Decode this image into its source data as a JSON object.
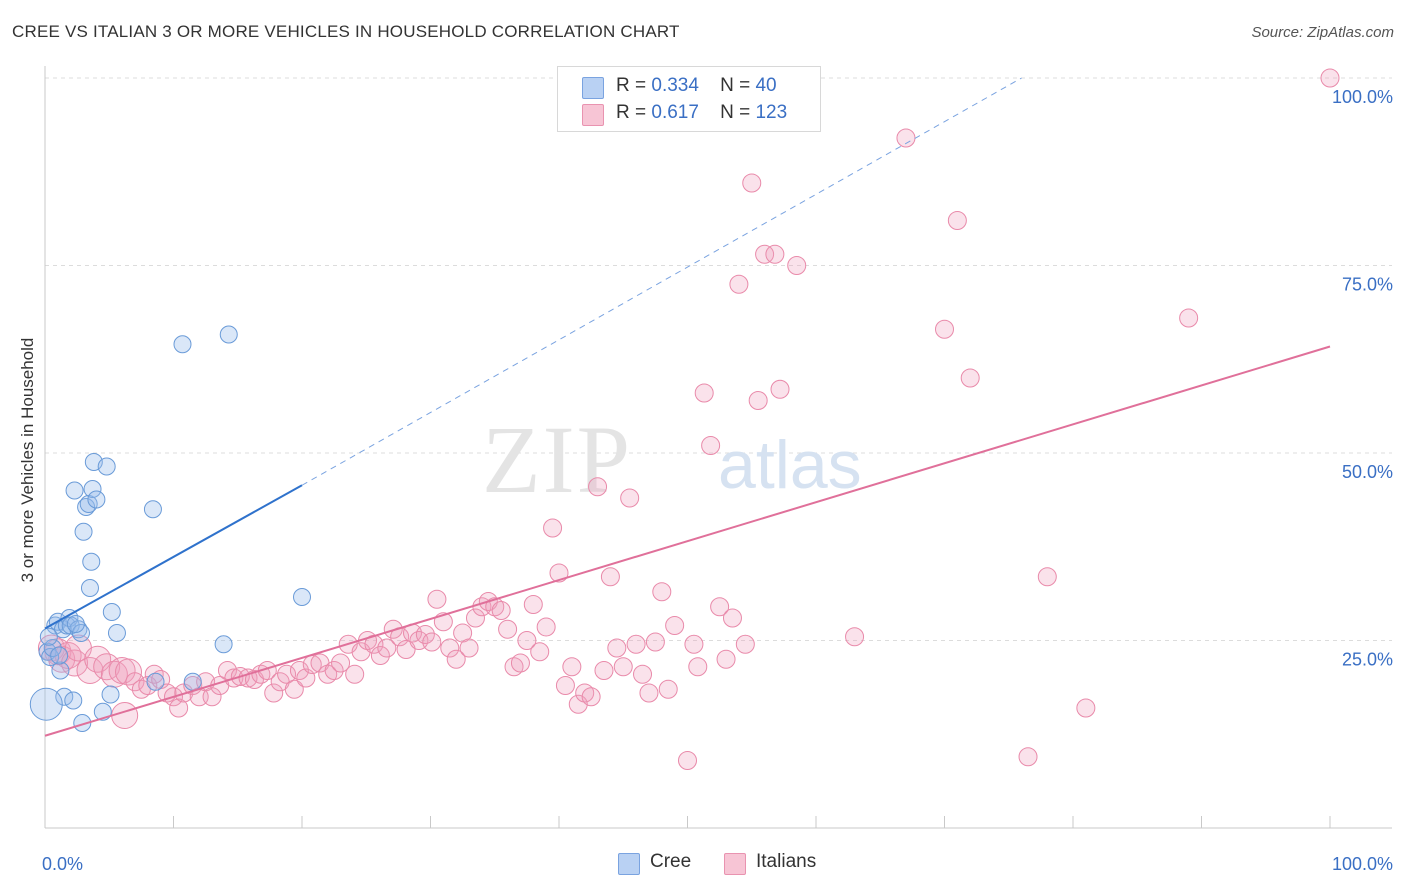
{
  "title": "CREE VS ITALIAN 3 OR MORE VEHICLES IN HOUSEHOLD CORRELATION CHART",
  "source": "Source: ZipAtlas.com",
  "watermark": {
    "zip": "ZIP",
    "atlas": "atlas"
  },
  "legend_top": [
    {
      "r_label": "R =",
      "r_value": "0.334",
      "n_label": "N =",
      "n_value": "40",
      "color": "#6a9bd8"
    },
    {
      "r_label": "R =",
      "r_value": "0.617",
      "n_label": "N =",
      "n_value": "123",
      "color": "#e98aaa"
    }
  ],
  "legend_bottom": [
    {
      "label": "Cree"
    },
    {
      "label": "Italians"
    }
  ],
  "chart_data": {
    "type": "scatter",
    "title": "CREE VS ITALIAN 3 OR MORE VEHICLES IN HOUSEHOLD CORRELATION CHART",
    "xlabel": "",
    "ylabel": "3 or more Vehicles in Household",
    "xlim": [
      0,
      100
    ],
    "ylim": [
      0,
      100
    ],
    "x_tick_labels": [
      "0.0%",
      "100.0%"
    ],
    "y_tick_labels": [
      "25.0%",
      "50.0%",
      "75.0%",
      "100.0%"
    ],
    "y_ticks": [
      25,
      50,
      75,
      100
    ],
    "grid": "horizontal dashed",
    "legend_placement": "top-center and bottom",
    "series": [
      {
        "name": "Cree",
        "color": "#6a9bd8",
        "trend": {
          "x0": 0,
          "y0": 26.6,
          "x1": 20,
          "y1": 45.7,
          "dashed_to_x": 76,
          "dashed_to_y": 100
        },
        "points": [
          [
            0.2,
            23.5
          ],
          [
            0.4,
            22.8
          ],
          [
            0.6,
            24.0
          ],
          [
            0.8,
            27.0
          ],
          [
            1.0,
            27.5
          ],
          [
            1.2,
            21.0
          ],
          [
            1.4,
            26.5
          ],
          [
            1.5,
            17.5
          ],
          [
            1.7,
            27.0
          ],
          [
            1.9,
            28.0
          ],
          [
            2.0,
            27.0
          ],
          [
            2.2,
            17.0
          ],
          [
            2.3,
            45.0
          ],
          [
            2.6,
            26.5
          ],
          [
            2.8,
            26.0
          ],
          [
            3.0,
            39.5
          ],
          [
            3.2,
            42.8
          ],
          [
            3.4,
            43.2
          ],
          [
            3.5,
            32.0
          ],
          [
            3.6,
            35.5
          ],
          [
            3.7,
            45.2
          ],
          [
            3.8,
            48.8
          ],
          [
            4.0,
            43.8
          ],
          [
            4.5,
            15.5
          ],
          [
            4.8,
            48.2
          ],
          [
            5.1,
            17.8
          ],
          [
            5.2,
            28.8
          ],
          [
            5.6,
            26.0
          ],
          [
            0.1,
            16.5
          ],
          [
            2.9,
            14.0
          ],
          [
            8.4,
            42.5
          ],
          [
            8.6,
            19.5
          ],
          [
            10.7,
            64.5
          ],
          [
            11.5,
            19.5
          ],
          [
            13.9,
            24.5
          ],
          [
            14.3,
            65.8
          ],
          [
            20.0,
            30.8
          ],
          [
            1.1,
            23.0
          ],
          [
            0.3,
            25.5
          ],
          [
            2.4,
            27.2
          ]
        ]
      },
      {
        "name": "Italians",
        "color": "#e98aaa",
        "trend": {
          "x0": 0,
          "y0": 12.3,
          "x1": 100,
          "y1": 64.2
        },
        "points": [
          [
            0.5,
            24.0
          ],
          [
            1.0,
            23.5
          ],
          [
            1.3,
            22.5
          ],
          [
            1.8,
            23.0
          ],
          [
            2.3,
            22.0
          ],
          [
            2.6,
            24.0
          ],
          [
            3.5,
            21.0
          ],
          [
            4.1,
            22.5
          ],
          [
            4.8,
            21.5
          ],
          [
            5.4,
            20.5
          ],
          [
            6.0,
            21.0
          ],
          [
            6.2,
            15.0
          ],
          [
            6.5,
            20.8
          ],
          [
            7.0,
            19.5
          ],
          [
            7.5,
            18.5
          ],
          [
            8.0,
            19.0
          ],
          [
            8.5,
            20.5
          ],
          [
            9.0,
            19.8
          ],
          [
            9.5,
            18.0
          ],
          [
            10.0,
            17.5
          ],
          [
            10.4,
            16.0
          ],
          [
            10.8,
            18.0
          ],
          [
            11.5,
            19.0
          ],
          [
            12.0,
            17.5
          ],
          [
            12.5,
            19.5
          ],
          [
            13.0,
            17.5
          ],
          [
            13.6,
            19.0
          ],
          [
            14.2,
            21.0
          ],
          [
            14.7,
            20.0
          ],
          [
            15.2,
            20.2
          ],
          [
            15.8,
            20.0
          ],
          [
            16.3,
            19.8
          ],
          [
            16.8,
            20.5
          ],
          [
            17.3,
            21.0
          ],
          [
            17.8,
            18.0
          ],
          [
            18.3,
            19.5
          ],
          [
            18.8,
            20.5
          ],
          [
            19.4,
            18.5
          ],
          [
            19.8,
            21.0
          ],
          [
            20.3,
            20.0
          ],
          [
            20.8,
            21.8
          ],
          [
            21.4,
            22.0
          ],
          [
            22.0,
            20.5
          ],
          [
            22.5,
            21.0
          ],
          [
            23.0,
            22.0
          ],
          [
            23.6,
            24.5
          ],
          [
            24.1,
            20.5
          ],
          [
            24.6,
            23.5
          ],
          [
            25.1,
            25.0
          ],
          [
            25.6,
            24.5
          ],
          [
            26.1,
            23.0
          ],
          [
            26.6,
            24.0
          ],
          [
            27.1,
            26.5
          ],
          [
            27.6,
            25.5
          ],
          [
            28.1,
            23.8
          ],
          [
            28.6,
            26.0
          ],
          [
            29.1,
            25.0
          ],
          [
            29.6,
            25.8
          ],
          [
            30.1,
            24.8
          ],
          [
            30.5,
            30.5
          ],
          [
            31.0,
            27.5
          ],
          [
            31.5,
            24.0
          ],
          [
            32.0,
            22.5
          ],
          [
            32.5,
            26.0
          ],
          [
            33.0,
            24.0
          ],
          [
            33.5,
            28.0
          ],
          [
            34.0,
            29.5
          ],
          [
            34.5,
            30.2
          ],
          [
            35.0,
            29.5
          ],
          [
            35.5,
            29.0
          ],
          [
            36.0,
            26.5
          ],
          [
            36.5,
            21.5
          ],
          [
            37.0,
            22.0
          ],
          [
            37.5,
            25.0
          ],
          [
            38.0,
            29.8
          ],
          [
            38.5,
            23.5
          ],
          [
            39.0,
            26.8
          ],
          [
            39.5,
            40.0
          ],
          [
            40.0,
            34.0
          ],
          [
            40.5,
            19.0
          ],
          [
            41.0,
            21.5
          ],
          [
            41.5,
            16.5
          ],
          [
            42.0,
            18.0
          ],
          [
            42.5,
            17.5
          ],
          [
            43.0,
            45.5
          ],
          [
            43.5,
            21.0
          ],
          [
            44.0,
            33.5
          ],
          [
            44.5,
            24.0
          ],
          [
            45.0,
            21.5
          ],
          [
            45.5,
            44.0
          ],
          [
            46.0,
            24.5
          ],
          [
            46.5,
            20.5
          ],
          [
            47.0,
            18.0
          ],
          [
            47.5,
            24.8
          ],
          [
            48.0,
            31.5
          ],
          [
            48.5,
            18.5
          ],
          [
            49.0,
            27.0
          ],
          [
            50.0,
            9.0
          ],
          [
            50.5,
            24.5
          ],
          [
            50.8,
            21.5
          ],
          [
            51.3,
            58.0
          ],
          [
            51.8,
            51.0
          ],
          [
            52.5,
            29.5
          ],
          [
            53.0,
            22.5
          ],
          [
            53.5,
            28.0
          ],
          [
            54.0,
            72.5
          ],
          [
            54.5,
            24.5
          ],
          [
            55.0,
            86.0
          ],
          [
            55.5,
            57.0
          ],
          [
            56.0,
            76.5
          ],
          [
            56.8,
            76.5
          ],
          [
            57.2,
            58.5
          ],
          [
            58.5,
            75.0
          ],
          [
            63.0,
            25.5
          ],
          [
            67.0,
            92.0
          ],
          [
            70.0,
            66.5
          ],
          [
            71.0,
            81.0
          ],
          [
            72.0,
            60.0
          ],
          [
            76.5,
            9.5
          ],
          [
            78.0,
            33.5
          ],
          [
            81.0,
            16.0
          ],
          [
            89.0,
            68.0
          ],
          [
            100.0,
            100.0
          ]
        ]
      }
    ]
  }
}
